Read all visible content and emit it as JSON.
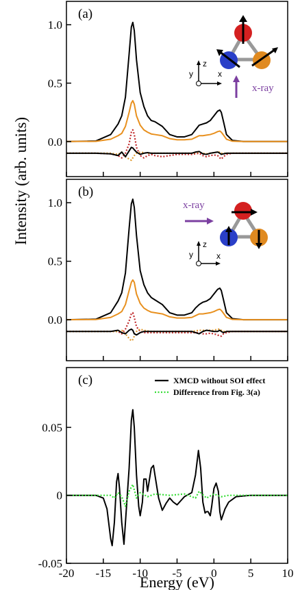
{
  "chart_data": [
    {
      "type": "line",
      "panel_label": "(a)",
      "annotation": "x-ray",
      "inset_axes": [
        "z",
        "y",
        "x"
      ],
      "xlim": [
        -20,
        10
      ],
      "xticks": [
        -20,
        -15,
        -10,
        -5,
        0,
        5,
        10
      ],
      "ylim": [
        -0.3,
        1.2
      ],
      "yticks": [
        {
          "value": 0,
          "label": "0.0"
        },
        {
          "value": 0.5,
          "label": "0.5"
        },
        {
          "value": 1,
          "label": "1.0"
        }
      ],
      "x": [
        -20,
        -16,
        -14,
        -13,
        -12.5,
        -12,
        -11.5,
        -11.2,
        -11,
        -10.8,
        -10.5,
        -10,
        -9.5,
        -9,
        -8.5,
        -8,
        -7,
        -6,
        -5,
        -4,
        -3,
        -2.5,
        -2,
        -1.5,
        -1,
        -0.5,
        0,
        0.5,
        0.8,
        1,
        1.3,
        1.7,
        2.5,
        4,
        10
      ],
      "series": [
        {
          "color": "#000000",
          "style": "solid",
          "values": [
            0,
            0.005,
            0.06,
            0.15,
            0.22,
            0.38,
            0.75,
            0.98,
            1.02,
            0.95,
            0.7,
            0.42,
            0.3,
            0.22,
            0.18,
            0.17,
            0.13,
            0.06,
            0.04,
            0.04,
            0.06,
            0.1,
            0.14,
            0.15,
            0.16,
            0.18,
            0.22,
            0.26,
            0.27,
            0.25,
            0.17,
            0.06,
            0.01,
            0,
            0
          ]
        },
        {
          "color": "#e8901e",
          "style": "solid",
          "values": [
            0,
            0.002,
            0.02,
            0.05,
            0.07,
            0.13,
            0.25,
            0.33,
            0.35,
            0.32,
            0.22,
            0.14,
            0.1,
            0.08,
            0.065,
            0.06,
            0.05,
            0.025,
            0.015,
            0.015,
            0.02,
            0.035,
            0.05,
            0.05,
            0.055,
            0.06,
            0.07,
            0.085,
            0.09,
            0.08,
            0.055,
            0.02,
            0.003,
            0,
            0
          ]
        },
        {
          "color": "#c0282a",
          "style": "dotted",
          "values": [
            -0.1,
            -0.1,
            -0.105,
            -0.12,
            -0.14,
            -0.1,
            -0.02,
            0.08,
            0.1,
            0.06,
            -0.05,
            -0.12,
            -0.14,
            -0.12,
            -0.11,
            -0.12,
            -0.13,
            -0.12,
            -0.11,
            -0.11,
            -0.11,
            -0.105,
            -0.1,
            -0.12,
            -0.13,
            -0.12,
            -0.115,
            -0.12,
            -0.14,
            -0.15,
            -0.13,
            -0.11,
            -0.1,
            -0.1,
            -0.1
          ]
        },
        {
          "color": "#e09a30",
          "style": "dotted",
          "values": [
            -0.1,
            -0.1,
            -0.1,
            -0.11,
            -0.09,
            -0.13,
            -0.15,
            -0.16,
            -0.14,
            -0.12,
            -0.1,
            -0.09,
            -0.095,
            -0.1,
            -0.1,
            -0.1,
            -0.1,
            -0.1,
            -0.1,
            -0.1,
            -0.1,
            -0.095,
            -0.09,
            -0.1,
            -0.105,
            -0.1,
            -0.095,
            -0.09,
            -0.09,
            -0.1,
            -0.1,
            -0.1,
            -0.1,
            -0.1,
            -0.1
          ]
        },
        {
          "color": "#000000",
          "style": "solid",
          "values": [
            -0.1,
            -0.1,
            -0.105,
            -0.12,
            -0.09,
            -0.13,
            -0.08,
            -0.05,
            -0.055,
            -0.07,
            -0.09,
            -0.11,
            -0.1,
            -0.095,
            -0.1,
            -0.1,
            -0.1,
            -0.1,
            -0.1,
            -0.1,
            -0.1,
            -0.09,
            -0.085,
            -0.105,
            -0.11,
            -0.1,
            -0.095,
            -0.09,
            -0.1,
            -0.11,
            -0.105,
            -0.1,
            -0.1,
            -0.1,
            -0.1
          ]
        }
      ]
    },
    {
      "type": "line",
      "panel_label": "(b)",
      "annotation": "x-ray",
      "inset_axes": [
        "z",
        "y",
        "x"
      ],
      "ylabel": "Intensity (arb. units)",
      "xlim": [
        -20,
        10
      ],
      "xticks": [
        -20,
        -15,
        -10,
        -5,
        0,
        5,
        10
      ],
      "ylim": [
        -0.35,
        1.2
      ],
      "yticks": [
        {
          "value": 0,
          "label": "0.0"
        },
        {
          "value": 0.5,
          "label": "0.5"
        },
        {
          "value": 1,
          "label": "1.0"
        }
      ],
      "x": [
        -20,
        -16,
        -14,
        -13,
        -12.5,
        -12,
        -11.5,
        -11.2,
        -11,
        -10.8,
        -10.5,
        -10,
        -9.5,
        -9,
        -8.5,
        -8,
        -7,
        -6,
        -5,
        -4,
        -3,
        -2.5,
        -2,
        -1.5,
        -1,
        -0.5,
        0,
        0.5,
        0.8,
        1,
        1.3,
        1.7,
        2.5,
        4,
        10
      ],
      "series": [
        {
          "color": "#000000",
          "style": "solid",
          "values": [
            0,
            0.005,
            0.06,
            0.16,
            0.23,
            0.4,
            0.78,
            0.99,
            1.03,
            0.96,
            0.72,
            0.42,
            0.3,
            0.23,
            0.19,
            0.17,
            0.13,
            0.06,
            0.04,
            0.04,
            0.06,
            0.1,
            0.13,
            0.15,
            0.16,
            0.18,
            0.22,
            0.26,
            0.27,
            0.25,
            0.17,
            0.06,
            0.01,
            0,
            0
          ]
        },
        {
          "color": "#e8901e",
          "style": "solid",
          "values": [
            0,
            0.002,
            0.02,
            0.05,
            0.07,
            0.13,
            0.25,
            0.32,
            0.34,
            0.32,
            0.22,
            0.14,
            0.1,
            0.08,
            0.065,
            0.06,
            0.05,
            0.025,
            0.015,
            0.015,
            0.02,
            0.035,
            0.05,
            0.05,
            0.055,
            0.06,
            0.07,
            0.085,
            0.09,
            0.08,
            0.055,
            0.02,
            0.003,
            0,
            0
          ]
        },
        {
          "color": "#c0282a",
          "style": "dotted",
          "values": [
            -0.1,
            -0.1,
            -0.1,
            -0.1,
            -0.12,
            -0.08,
            -0.01,
            0.05,
            0.06,
            0.02,
            -0.06,
            -0.1,
            -0.11,
            -0.11,
            -0.11,
            -0.11,
            -0.11,
            -0.11,
            -0.11,
            -0.11,
            -0.11,
            -0.11,
            -0.11,
            -0.12,
            -0.12,
            -0.115,
            -0.12,
            -0.13,
            -0.14,
            -0.14,
            -0.12,
            -0.11,
            -0.1,
            -0.1,
            -0.1
          ]
        },
        {
          "color": "#e09a30",
          "style": "dotted",
          "values": [
            -0.1,
            -0.1,
            -0.1,
            -0.1,
            -0.09,
            -0.12,
            -0.16,
            -0.18,
            -0.17,
            -0.14,
            -0.1,
            -0.08,
            -0.09,
            -0.095,
            -0.1,
            -0.1,
            -0.1,
            -0.1,
            -0.1,
            -0.1,
            -0.1,
            -0.095,
            -0.09,
            -0.09,
            -0.09,
            -0.09,
            -0.09,
            -0.08,
            -0.08,
            -0.09,
            -0.1,
            -0.1,
            -0.1,
            -0.1,
            -0.1
          ]
        },
        {
          "color": "#000000",
          "style": "solid",
          "values": [
            -0.1,
            -0.1,
            -0.1,
            -0.09,
            -0.11,
            -0.12,
            -0.09,
            -0.08,
            -0.09,
            -0.12,
            -0.13,
            -0.11,
            -0.1,
            -0.1,
            -0.1,
            -0.1,
            -0.1,
            -0.1,
            -0.1,
            -0.1,
            -0.1,
            -0.11,
            -0.12,
            -0.1,
            -0.09,
            -0.095,
            -0.1,
            -0.1,
            -0.09,
            -0.1,
            -0.11,
            -0.1,
            -0.1,
            -0.1,
            -0.1
          ]
        }
      ]
    },
    {
      "type": "line",
      "panel_label": "(c)",
      "xlabel": "Energy (eV)",
      "xlim": [
        -20,
        10
      ],
      "xticks": [
        -20,
        -15,
        -10,
        -5,
        0,
        5,
        10
      ],
      "ylim": [
        -0.05,
        0.094
      ],
      "yticks": [
        -0.05,
        0,
        0.05
      ],
      "series": [
        {
          "name": "XMCD without SOI effect",
          "color": "#000000",
          "style": "solid",
          "x": [
            -20,
            -16,
            -15,
            -14.5,
            -14,
            -13.8,
            -13.5,
            -13.2,
            -13,
            -12.8,
            -12.5,
            -12.2,
            -12,
            -11.5,
            -11.2,
            -11,
            -10.8,
            -10.5,
            -10.2,
            -10,
            -9.7,
            -9.5,
            -9.2,
            -9,
            -8.5,
            -8.2,
            -8,
            -7.5,
            -7,
            -6.5,
            -6,
            -5.5,
            -5,
            -4.5,
            -4,
            -3,
            -2.5,
            -2.1,
            -1.8,
            -1.5,
            -1.2,
            -1,
            -0.8,
            -0.5,
            -0.3,
            0,
            0.3,
            0.6,
            0.8,
            1,
            1.5,
            2,
            3,
            5,
            10
          ],
          "values": [
            0,
            0,
            -0.002,
            -0.01,
            -0.032,
            -0.037,
            -0.02,
            0.01,
            0.016,
            0.005,
            -0.02,
            -0.036,
            -0.02,
            0.02,
            0.055,
            0.063,
            0.05,
            0.015,
            -0.008,
            -0.015,
            -0.005,
            0.012,
            0.012,
            0.003,
            0.02,
            0.022,
            0.015,
            -0.002,
            -0.011,
            -0.006,
            -0.002,
            -0.005,
            -0.007,
            -0.004,
            -0.001,
            0.002,
            0.015,
            0.033,
            0.02,
            -0.005,
            -0.013,
            -0.012,
            -0.012,
            -0.015,
            -0.008,
            0.005,
            0.009,
            0.003,
            -0.012,
            -0.018,
            -0.01,
            -0.005,
            -0.001,
            0,
            0
          ]
        },
        {
          "name": "Difference from Fig. 3(a)",
          "color": "#33dd33",
          "style": "dotted",
          "x": [
            -20,
            -14,
            -13.5,
            -13,
            -12.5,
            -12,
            -11.5,
            -11,
            -10.5,
            -10,
            -9,
            -8,
            -6,
            -4,
            -2.5,
            -2,
            -1,
            0,
            1,
            2,
            10
          ],
          "values": [
            0,
            0,
            -0.002,
            0.002,
            -0.001,
            -0.008,
            0.003,
            0.008,
            -0.002,
            0.002,
            -0.001,
            0.001,
            0,
            0.001,
            -0.002,
            0.003,
            -0.002,
            0.001,
            -0.001,
            0,
            0
          ]
        }
      ]
    }
  ]
}
